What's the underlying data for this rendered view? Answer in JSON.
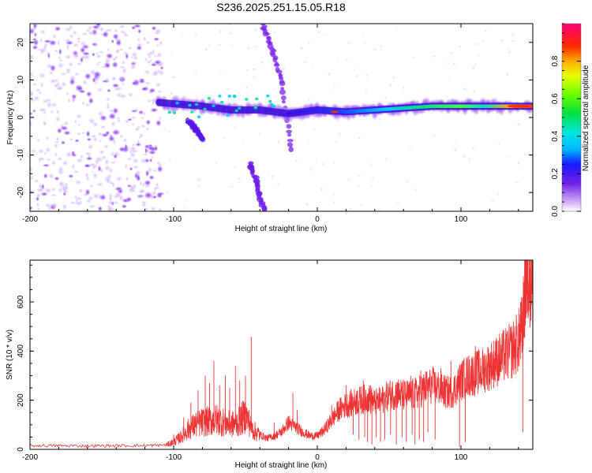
{
  "title": "S236.2025.251.15.05.R18",
  "colors": {
    "snr_line": "#ee3333",
    "background": "#ffffff",
    "axis": "#000000"
  },
  "chart_data": [
    {
      "type": "heatmap",
      "name": "spectrogram",
      "xlabel": "Height of straight line (km)",
      "ylabel": "Frequency (Hz)",
      "xlim": [
        -200,
        150
      ],
      "ylim": [
        -25,
        25
      ],
      "xticks": [
        -200,
        -100,
        0,
        100
      ],
      "yticks": [
        -20,
        -10,
        0,
        10,
        20
      ],
      "colorbar": {
        "label": "Normalized spectral amplitude",
        "range": [
          0,
          1
        ],
        "ticks": [
          "0.0",
          "0.2",
          "0.4",
          "0.6",
          "0.8"
        ]
      },
      "features": [
        {
          "label": "diffuse noise",
          "x_range": [
            -200,
            -108
          ],
          "f_range": [
            -25,
            25
          ],
          "amplitude": 0.1
        },
        {
          "label": "main echo band",
          "x": [
            -110,
            -80,
            -60,
            -40,
            -20,
            0,
            20,
            40,
            60,
            80,
            100,
            120,
            150
          ],
          "f": [
            4,
            3,
            2,
            2,
            1,
            2,
            1.5,
            2,
            2.5,
            3,
            3,
            3,
            3
          ],
          "amplitude": [
            0.25,
            0.3,
            0.3,
            0.2,
            0.3,
            0.35,
            0.5,
            0.5,
            0.7,
            0.7,
            0.55,
            0.85,
            0.95
          ]
        },
        {
          "label": "descending trace",
          "x": [
            -38,
            -31,
            -24,
            -18
          ],
          "f": [
            25,
            18,
            8,
            -10
          ],
          "amplitude": 0.15
        },
        {
          "label": "lower branch",
          "x": [
            -47,
            -42,
            -37
          ],
          "f": [
            -12,
            -18,
            -25
          ],
          "amplitude": 0.15
        },
        {
          "label": "short branch",
          "x": [
            -90,
            -85,
            -80
          ],
          "f": [
            -1,
            -3,
            -6
          ],
          "amplitude": 0.3
        }
      ]
    },
    {
      "type": "line",
      "name": "snr",
      "xlabel": "Height of straight line (km)",
      "ylabel": "SNR (10 * v/v)",
      "xlim": [
        -200,
        150
      ],
      "ylim": [
        0,
        770
      ],
      "xticks": [
        -200,
        -100,
        0,
        100
      ],
      "yticks": [
        0,
        200,
        400,
        600
      ],
      "series": [
        {
          "name": "SNR",
          "x": [
            -200,
            -180,
            -160,
            -140,
            -120,
            -105,
            -100,
            -95,
            -90,
            -85,
            -80,
            -75,
            -70,
            -65,
            -60,
            -55,
            -50,
            -45,
            -40,
            -35,
            -30,
            -25,
            -20,
            -15,
            -10,
            -5,
            0,
            5,
            10,
            15,
            20,
            25,
            30,
            35,
            40,
            45,
            50,
            55,
            60,
            65,
            70,
            75,
            80,
            85,
            90,
            95,
            100,
            105,
            110,
            115,
            120,
            125,
            130,
            135,
            140,
            143,
            145,
            147,
            150
          ],
          "y": [
            15,
            15,
            14,
            15,
            15,
            18,
            30,
            50,
            80,
            100,
            110,
            115,
            120,
            110,
            100,
            110,
            140,
            80,
            60,
            45,
            55,
            70,
            110,
            90,
            70,
            55,
            55,
            80,
            120,
            160,
            180,
            190,
            200,
            210,
            190,
            200,
            220,
            230,
            220,
            220,
            230,
            250,
            260,
            250,
            230,
            240,
            280,
            300,
            310,
            320,
            340,
            360,
            380,
            400,
            440,
            500,
            700,
            720,
            680
          ]
        }
      ],
      "spikes": [
        {
          "x": -100,
          "y": 60
        },
        {
          "x": -93,
          "y": 130
        },
        {
          "x": -88,
          "y": 190
        },
        {
          "x": -83,
          "y": 240
        },
        {
          "x": -78,
          "y": 300
        },
        {
          "x": -75,
          "y": 270
        },
        {
          "x": -72,
          "y": 360
        },
        {
          "x": -68,
          "y": 260
        },
        {
          "x": -64,
          "y": 300
        },
        {
          "x": -61,
          "y": 250
        },
        {
          "x": -57,
          "y": 340
        },
        {
          "x": -54,
          "y": 280
        },
        {
          "x": -50,
          "y": 300
        },
        {
          "x": -46,
          "y": 458
        },
        {
          "x": -30,
          "y": 110
        },
        {
          "x": -17,
          "y": 230
        },
        {
          "x": -14,
          "y": 160
        },
        {
          "x": 10,
          "y": 180
        },
        {
          "x": 20,
          "y": 260
        },
        {
          "x": 28,
          "y": 240
        },
        {
          "x": 32,
          "y": 280
        },
        {
          "x": 37,
          "y": 260
        },
        {
          "x": 48,
          "y": 260
        },
        {
          "x": 56,
          "y": 270
        },
        {
          "x": 65,
          "y": 300
        },
        {
          "x": 72,
          "y": 320
        },
        {
          "x": 78,
          "y": 290
        },
        {
          "x": 86,
          "y": 330
        },
        {
          "x": 93,
          "y": 360
        },
        {
          "x": 110,
          "y": 420
        },
        {
          "x": 116,
          "y": 380
        },
        {
          "x": 124,
          "y": 440
        },
        {
          "x": 131,
          "y": 450
        },
        {
          "x": 138,
          "y": 420
        },
        {
          "x": 144,
          "y": 620
        },
        {
          "x": 146,
          "y": 770
        },
        {
          "x": 148,
          "y": 730
        }
      ],
      "dips": [
        {
          "x": 25,
          "y": 60
        },
        {
          "x": 29,
          "y": 40
        },
        {
          "x": 33,
          "y": 50
        },
        {
          "x": 35,
          "y": 30
        },
        {
          "x": 38,
          "y": 20
        },
        {
          "x": 41,
          "y": 50
        },
        {
          "x": 44,
          "y": 30
        },
        {
          "x": 47,
          "y": 40
        },
        {
          "x": 51,
          "y": 60
        },
        {
          "x": 55,
          "y": 20
        },
        {
          "x": 59,
          "y": 50
        },
        {
          "x": 62,
          "y": 30
        },
        {
          "x": 66,
          "y": 60
        },
        {
          "x": 68,
          "y": 20
        },
        {
          "x": 71,
          "y": 40
        },
        {
          "x": 74,
          "y": 30
        },
        {
          "x": 77,
          "y": 70
        },
        {
          "x": 82,
          "y": 40
        },
        {
          "x": 99,
          "y": 10
        },
        {
          "x": 103,
          "y": 30
        },
        {
          "x": 143,
          "y": 70
        }
      ]
    }
  ]
}
